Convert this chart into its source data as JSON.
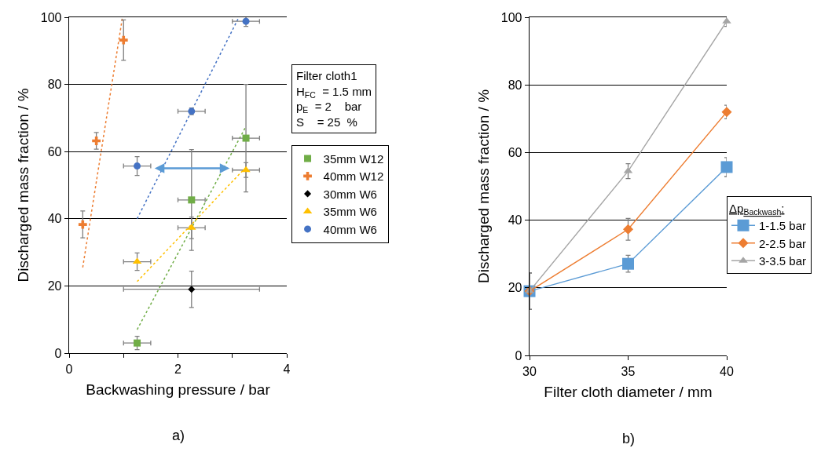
{
  "chart_data": [
    {
      "type": "scatter",
      "xlabel": "Backwashing pressure / bar",
      "ylabel": "Discharged mass fraction / %",
      "xlim": [
        0,
        4
      ],
      "xticks": [
        0,
        {
          "value": 1,
          "label": null
        },
        2,
        {
          "value": 3,
          "label": null
        },
        4
      ],
      "ylim": [
        0,
        100
      ],
      "yticks": [
        0,
        20,
        40,
        60,
        80,
        100
      ],
      "grid": "y",
      "legend": "right",
      "annotations": [
        "Filter cloth1",
        "H$_{FC}$  = 1.5 mm",
        "p$_{E}$  = 2    bar",
        "S    = 25  %",
        "a)"
      ],
      "series": [
        {
          "name": "35mm W12",
          "color": "#70ad47",
          "marker": "square",
          "x": [
            1.25,
            2.25,
            3.25
          ],
          "values": [
            3,
            45.6,
            64
          ],
          "errors": [
            2,
            15,
            16
          ],
          "xerrors": [
            0.25,
            0.25,
            0.25
          ]
        },
        {
          "name": "40mm W12",
          "color": "#ed7d31",
          "marker": "cross",
          "x": [
            0.25,
            0.5,
            1.0
          ],
          "values": [
            38.3,
            63.2,
            93.2
          ],
          "errors": [
            4,
            2.5,
            6
          ]
        },
        {
          "name": "30mm W6",
          "color": "#000000",
          "marker": "diamond",
          "x": [
            2.25
          ],
          "values": [
            19
          ],
          "errors": [
            5.4
          ],
          "xerrors": [
            1.25
          ]
        },
        {
          "name": "35mm W6",
          "color": "#ffc000",
          "marker": "triangle",
          "x": [
            1.25,
            2.25,
            3.25
          ],
          "values": [
            27.2,
            37.3,
            54.5
          ],
          "errors": [
            2.6,
            3.2,
            2.2
          ],
          "xerrors": [
            0.25,
            0.25,
            0.25
          ]
        },
        {
          "name": "40mm W6",
          "color": "#4472c4",
          "marker": "circle",
          "x": [
            1.25,
            2.25,
            3.25
          ],
          "values": [
            55.7,
            72,
            98.8
          ],
          "errors": [
            2.8,
            1,
            1.5
          ],
          "xerrors": [
            0.25,
            0.25,
            0.25
          ]
        },
        {
          "type": "line",
          "color": "#ed7d31",
          "line_style": "dotted",
          "marker": "none",
          "x": [
            0.25,
            0.98
          ],
          "values": [
            25.5,
            100
          ]
        },
        {
          "type": "line",
          "color": "#4472c4",
          "line_style": "dotted",
          "marker": "none",
          "x": [
            1.25,
            3.12
          ],
          "values": [
            40,
            100
          ]
        },
        {
          "type": "line",
          "color": "#70ad47",
          "line_style": "dotted",
          "marker": "none",
          "x": [
            1.25,
            3.25
          ],
          "values": [
            7,
            67.5
          ]
        },
        {
          "type": "line",
          "color": "#ffc000",
          "line_style": "dotted",
          "marker": "none",
          "x": [
            1.25,
            3.2
          ],
          "values": [
            21.3,
            54.5
          ]
        }
      ]
    },
    {
      "type": "line",
      "xlabel": "Filter cloth diameter / mm",
      "ylabel": "Discharged mass fraction / %",
      "xlim": [
        30,
        40
      ],
      "xticks": [
        30,
        35,
        40
      ],
      "ylim": [
        0,
        100
      ],
      "yticks": [
        0,
        20,
        40,
        60,
        80,
        100
      ],
      "grid": "y",
      "legend": "right",
      "legend_title": "Δp$_{Backwash}$:",
      "annotations": [
        "b)"
      ],
      "series": [
        {
          "name": "1-1.5 bar",
          "color": "#5b9bd5",
          "marker": "square",
          "x": [
            30,
            35,
            40
          ],
          "values": [
            19,
            27.1,
            55.7
          ],
          "errors": [
            5.4,
            2.5,
            2.8
          ]
        },
        {
          "name": "2-2.5 bar",
          "color": "#ed7d31",
          "marker": "diamond",
          "x": [
            30,
            35,
            40
          ],
          "values": [
            19,
            37.3,
            72
          ],
          "errors": [
            5.4,
            3.2,
            2
          ]
        },
        {
          "name": "3-3.5 bar",
          "color": "#a5a5a5",
          "marker": "triangle",
          "x": [
            30,
            35,
            40
          ],
          "values": [
            19,
            54.5,
            98.8
          ],
          "errors": [
            5.4,
            2.2,
            1.5
          ]
        }
      ]
    }
  ]
}
